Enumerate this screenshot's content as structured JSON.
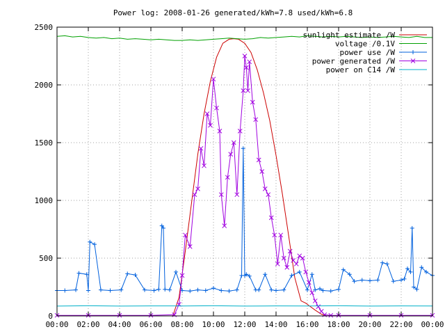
{
  "colors": {
    "sunlight": "#cc0000",
    "voltage": "#00a000",
    "power_use": "#0060dd",
    "power_generated": "#a000e0",
    "power_c14": "#00b0c8",
    "grid": "#a0a0a0",
    "axis": "#000000"
  },
  "chart_data": {
    "type": "line",
    "title": "Power log: 2008-01-26 generated/kWh=7.8 used/kWh=6.8",
    "xlabel": "",
    "ylabel": "",
    "xlim": [
      0,
      24
    ],
    "ylim": [
      0,
      2500
    ],
    "x_ticks": [
      0,
      2,
      4,
      6,
      8,
      10,
      12,
      14,
      16,
      18,
      20,
      22,
      24
    ],
    "x_tick_labels": [
      "00:00",
      "02:00",
      "04:00",
      "06:00",
      "08:00",
      "10:00",
      "12:00",
      "14:00",
      "16:00",
      "18:00",
      "20:00",
      "22:00",
      "00:00"
    ],
    "y_ticks": [
      0,
      500,
      1000,
      1500,
      2000,
      2500
    ],
    "y_tick_labels": [
      "0",
      "500",
      "1000",
      "1500",
      "2000",
      "2500"
    ],
    "grid": true,
    "legend_position": "top-right",
    "series": [
      {
        "name": "sunlight estimate /W",
        "key": "sunlight",
        "marker": "none",
        "x": [
          7.4,
          7.8,
          8.2,
          8.6,
          9.0,
          9.4,
          9.8,
          10.2,
          10.6,
          11.0,
          11.3,
          11.6,
          12.0,
          12.4,
          12.8,
          13.2,
          13.6,
          14.0,
          14.4,
          14.8,
          15.2,
          15.6,
          15.9,
          16.1,
          16.5,
          16.9,
          17.2
        ],
        "y": [
          0,
          160,
          560,
          980,
          1400,
          1750,
          2030,
          2240,
          2360,
          2395,
          2400,
          2395,
          2360,
          2280,
          2130,
          1930,
          1690,
          1390,
          1060,
          700,
          330,
          130,
          110,
          90,
          50,
          15,
          0
        ]
      },
      {
        "name": "voltage /0.1V",
        "key": "voltage",
        "marker": "none",
        "x": [
          0,
          0.5,
          1.0,
          1.5,
          2.0,
          2.5,
          3.0,
          3.5,
          4.0,
          4.5,
          5.0,
          5.5,
          6.0,
          6.5,
          7.0,
          7.5,
          8.0,
          8.5,
          9.0,
          9.5,
          10.0,
          10.5,
          11.0,
          11.5,
          12.0,
          12.5,
          13.0,
          13.5,
          14.0,
          14.5,
          15.0,
          15.5,
          16.0,
          16.5,
          17.0,
          17.5,
          18.0,
          18.5,
          19.0,
          19.5,
          20.0,
          20.5,
          21.0,
          21.5,
          22.0,
          22.5,
          23.0,
          23.5,
          24.0
        ],
        "y": [
          2420,
          2425,
          2415,
          2420,
          2410,
          2405,
          2410,
          2400,
          2405,
          2395,
          2400,
          2395,
          2390,
          2395,
          2390,
          2385,
          2385,
          2390,
          2385,
          2390,
          2395,
          2400,
          2405,
          2400,
          2395,
          2400,
          2410,
          2405,
          2410,
          2415,
          2420,
          2415,
          2425,
          2420,
          2415,
          2420,
          2415,
          2420,
          2415,
          2410,
          2415,
          2410,
          2415,
          2420,
          2415,
          2410,
          2420,
          2410,
          2410
        ]
      },
      {
        "name": "power use /W",
        "key": "power_use",
        "marker": "plus",
        "x": [
          0.0,
          0.5,
          1.2,
          1.4,
          1.9,
          2.0,
          2.1,
          2.4,
          2.8,
          3.4,
          4.1,
          4.5,
          5.0,
          5.6,
          6.2,
          6.5,
          6.7,
          6.8,
          6.9,
          7.2,
          7.6,
          8.0,
          8.5,
          9.0,
          9.5,
          10.0,
          10.5,
          11.0,
          11.5,
          11.8,
          11.9,
          12.0,
          12.1,
          12.3,
          12.7,
          12.9,
          13.3,
          13.7,
          14.0,
          14.5,
          15.0,
          15.5,
          16.0,
          16.3,
          16.5,
          16.8,
          17.0,
          17.5,
          18.0,
          18.3,
          18.7,
          19.0,
          19.5,
          20.0,
          20.5,
          20.8,
          21.1,
          21.5,
          22.0,
          22.2,
          22.4,
          22.6,
          22.7,
          22.8,
          23.0,
          23.3,
          23.6,
          24.0
        ],
        "y": [
          220,
          220,
          225,
          370,
          360,
          220,
          640,
          620,
          225,
          220,
          225,
          365,
          355,
          225,
          220,
          230,
          780,
          760,
          230,
          225,
          380,
          220,
          215,
          225,
          220,
          240,
          220,
          215,
          225,
          350,
          1450,
          350,
          360,
          345,
          225,
          225,
          360,
          225,
          220,
          225,
          350,
          380,
          225,
          360,
          225,
          235,
          220,
          215,
          230,
          400,
          360,
          300,
          310,
          305,
          310,
          460,
          450,
          300,
          310,
          320,
          410,
          380,
          760,
          250,
          230,
          420,
          380,
          350
        ]
      },
      {
        "name": "power generated /W",
        "key": "power_generated",
        "marker": "cross",
        "x": [
          0.0,
          2.0,
          4.0,
          6.0,
          7.5,
          7.8,
          8.0,
          8.2,
          8.5,
          8.8,
          9.0,
          9.2,
          9.4,
          9.6,
          9.8,
          10.0,
          10.2,
          10.4,
          10.5,
          10.7,
          10.9,
          11.1,
          11.3,
          11.5,
          11.7,
          11.9,
          12.0,
          12.1,
          12.2,
          12.3,
          12.5,
          12.7,
          12.9,
          13.1,
          13.3,
          13.5,
          13.7,
          13.9,
          14.1,
          14.3,
          14.5,
          14.7,
          14.9,
          15.1,
          15.3,
          15.5,
          15.7,
          15.9,
          16.1,
          16.3,
          16.5,
          16.7,
          16.9,
          17.1,
          17.5,
          18.0,
          20.0,
          22.0,
          24.0
        ],
        "y": [
          5,
          5,
          5,
          5,
          10,
          100,
          350,
          700,
          600,
          1050,
          1100,
          1450,
          1300,
          1750,
          1650,
          2050,
          1800,
          1600,
          1050,
          780,
          1200,
          1400,
          1500,
          1050,
          1600,
          1950,
          2250,
          2150,
          1950,
          2200,
          1850,
          1700,
          1350,
          1250,
          1100,
          1050,
          850,
          700,
          450,
          700,
          500,
          420,
          560,
          480,
          450,
          520,
          500,
          380,
          290,
          200,
          130,
          80,
          40,
          10,
          5,
          5,
          5,
          5,
          5
        ]
      },
      {
        "name": "power on C14 /W",
        "key": "power_c14",
        "marker": "none",
        "x": [
          0,
          2,
          4,
          6,
          8,
          10,
          12,
          14,
          16,
          18,
          20,
          22,
          24
        ],
        "y": [
          85,
          88,
          85,
          87,
          86,
          88,
          85,
          87,
          86,
          88,
          85,
          87,
          86
        ]
      }
    ]
  }
}
